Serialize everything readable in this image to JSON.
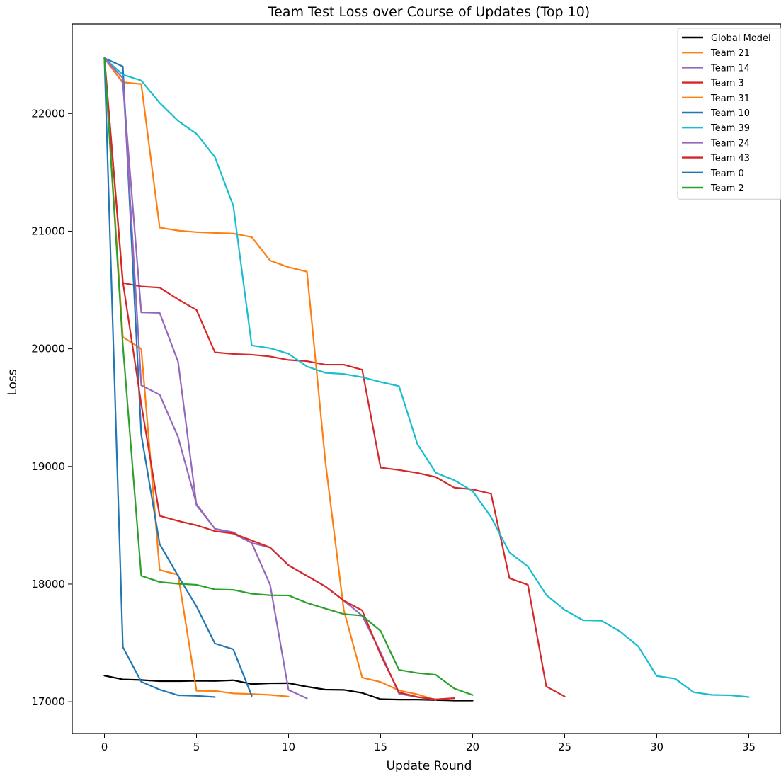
{
  "chart_data": {
    "type": "line",
    "title": "Team Test Loss over Course of Updates (Top 10)",
    "xlabel": "Update Round",
    "ylabel": "Loss",
    "xlim": [
      -1.75,
      36.75
    ],
    "ylim": [
      16730,
      22760
    ],
    "xticks": [
      0,
      5,
      10,
      15,
      20,
      25,
      30,
      35
    ],
    "yticks": [
      17000,
      18000,
      19000,
      20000,
      21000,
      22000
    ],
    "legend_position": "top-right",
    "grid": false,
    "series": [
      {
        "name": "Global Model",
        "color": "#000000",
        "values": [
          17222,
          17190,
          17185,
          17175,
          17175,
          17178,
          17177,
          17183,
          17150,
          17157,
          17158,
          17128,
          17103,
          17101,
          17075,
          17022,
          17018,
          17018,
          17014,
          17010,
          17010
        ]
      },
      {
        "name": "Team 21",
        "color": "#ff7f0e",
        "values": [
          22470,
          20100,
          20000,
          18120,
          18080,
          17093,
          17092,
          17071,
          17066,
          17058,
          17044
        ]
      },
      {
        "name": "Team 14",
        "color": "#9467bd",
        "values": [
          22470,
          22260,
          20310,
          20305,
          19890,
          18670,
          18470,
          18430,
          18350,
          17994,
          17100,
          17029
        ]
      },
      {
        "name": "Team 3",
        "color": "#d62728",
        "values": [
          22470,
          20560,
          20530,
          20520,
          20420,
          20330,
          19970,
          19956,
          19950,
          19935,
          19905,
          19895,
          19865,
          19865,
          19822,
          18990,
          18970,
          18945,
          18910,
          18820,
          18805,
          18768,
          18050,
          17994,
          17130,
          17045
        ]
      },
      {
        "name": "Team 31",
        "color": "#ff7f0e",
        "values": [
          22470,
          22265,
          22250,
          21030,
          21005,
          20992,
          20985,
          20980,
          20950,
          20750,
          20693,
          20656,
          19042,
          17780,
          17205,
          17168,
          17096,
          17063,
          17015
        ]
      },
      {
        "name": "Team 10",
        "color": "#1f77b4",
        "values": [
          22470,
          22400,
          19270,
          18340,
          18070,
          17810,
          17495,
          17446,
          17050
        ]
      },
      {
        "name": "Team 39",
        "color": "#17becf",
        "values": [
          22470,
          22330,
          22280,
          22090,
          21937,
          21828,
          21630,
          21215,
          20029,
          20005,
          19958,
          19850,
          19796,
          19786,
          19759,
          19718,
          19683,
          19190,
          18946,
          18884,
          18790,
          18570,
          18269,
          18150,
          17908,
          17780,
          17693,
          17689,
          17598,
          17470,
          17219,
          17196,
          17081,
          17058,
          17055,
          17040
        ]
      },
      {
        "name": "Team 24",
        "color": "#9467bd",
        "values": [
          22470,
          22300,
          19690,
          19610,
          19250,
          18680,
          18470,
          18440,
          18350,
          18311,
          18160,
          18070,
          17980,
          17860,
          17731,
          17420,
          17068,
          17040,
          17020,
          17030
        ]
      },
      {
        "name": "Team 43",
        "color": "#d62728",
        "values": [
          22470,
          20570,
          19530,
          18580,
          18537,
          18500,
          18450,
          18430,
          18371,
          18311,
          18160,
          18070,
          17980,
          17860,
          17776,
          17400,
          17080,
          17040,
          17020,
          17030
        ]
      },
      {
        "name": "Team 0",
        "color": "#1f77b4",
        "values": [
          22470,
          17465,
          17170,
          17103,
          17055,
          17050,
          17040
        ]
      },
      {
        "name": "Team 2",
        "color": "#2ca02c",
        "values": [
          22470,
          20030,
          18070,
          18018,
          18003,
          17994,
          17955,
          17951,
          17918,
          17905,
          17904,
          17840,
          17792,
          17745,
          17732,
          17602,
          17271,
          17244,
          17229,
          17113,
          17057
        ]
      }
    ]
  }
}
